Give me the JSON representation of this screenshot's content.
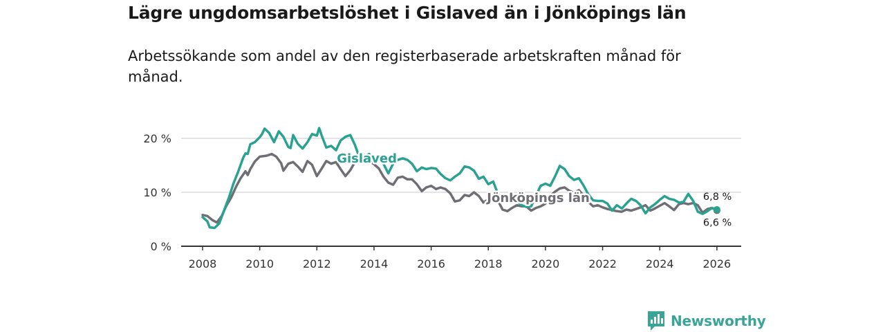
{
  "header": {
    "title": "Lägre ungdomsarbetslöshet i Gislaved än i Jönköpings län",
    "subtitle": "Arbetssökande som andel av den registerbaserade arbetskraften månad för månad."
  },
  "brand": {
    "name": "Newsworthy",
    "color": "#3aa597"
  },
  "chart_data": {
    "type": "line",
    "title": "Lägre ungdomsarbetslöshet i Gislaved än i Jönköpings län",
    "subtitle": "Arbetssökande som andel av den registerbaserade arbetskraften månad för månad.",
    "xlabel": "",
    "ylabel": "",
    "xlim": [
      2007.25,
      2026.85
    ],
    "ylim": [
      0,
      20
    ],
    "grid": true,
    "x_ticks": [
      2008,
      2010,
      2012,
      2014,
      2016,
      2018,
      2020,
      2022,
      2024,
      2026
    ],
    "x_tick_labels": [
      "2008",
      "2010",
      "2012",
      "2014",
      "2016",
      "2018",
      "2020",
      "2022",
      "2024",
      "2026"
    ],
    "y_ticks": [
      0,
      10,
      20
    ],
    "y_tick_labels": [
      "0 %",
      "10 %",
      "20 %"
    ],
    "series": [
      {
        "name": "Jönköpings län",
        "color": "#6e6e74",
        "end_label": "6,6 %",
        "points": [
          [
            2008.0,
            5.8
          ],
          [
            2008.17,
            5.6
          ],
          [
            2008.33,
            4.9
          ],
          [
            2008.5,
            4.4
          ],
          [
            2008.67,
            5.6
          ],
          [
            2008.83,
            7.5
          ],
          [
            2009.0,
            9.0
          ],
          [
            2009.17,
            11.0
          ],
          [
            2009.33,
            12.6
          ],
          [
            2009.5,
            13.9
          ],
          [
            2009.58,
            13.2
          ],
          [
            2009.67,
            14.3
          ],
          [
            2009.83,
            15.7
          ],
          [
            2010.0,
            16.6
          ],
          [
            2010.25,
            16.8
          ],
          [
            2010.42,
            17.1
          ],
          [
            2010.58,
            16.6
          ],
          [
            2010.75,
            15.4
          ],
          [
            2010.83,
            14.0
          ],
          [
            2011.0,
            15.3
          ],
          [
            2011.17,
            15.6
          ],
          [
            2011.33,
            14.8
          ],
          [
            2011.5,
            13.8
          ],
          [
            2011.67,
            15.8
          ],
          [
            2011.83,
            15.1
          ],
          [
            2012.0,
            13.0
          ],
          [
            2012.17,
            14.4
          ],
          [
            2012.33,
            15.8
          ],
          [
            2012.5,
            15.3
          ],
          [
            2012.67,
            15.6
          ],
          [
            2012.83,
            14.3
          ],
          [
            2013.0,
            13.0
          ],
          [
            2013.17,
            14.1
          ],
          [
            2013.33,
            15.6
          ],
          [
            2013.5,
            16.3
          ],
          [
            2013.67,
            16.9
          ],
          [
            2013.83,
            16.2
          ],
          [
            2013.92,
            15.5
          ],
          [
            2014.0,
            15.2
          ],
          [
            2014.17,
            14.4
          ],
          [
            2014.33,
            12.9
          ],
          [
            2014.5,
            11.8
          ],
          [
            2014.67,
            11.4
          ],
          [
            2014.83,
            12.7
          ],
          [
            2015.0,
            12.9
          ],
          [
            2015.17,
            12.4
          ],
          [
            2015.33,
            12.4
          ],
          [
            2015.5,
            11.5
          ],
          [
            2015.67,
            10.2
          ],
          [
            2015.83,
            10.9
          ],
          [
            2016.0,
            11.2
          ],
          [
            2016.17,
            10.6
          ],
          [
            2016.33,
            10.9
          ],
          [
            2016.5,
            10.6
          ],
          [
            2016.67,
            9.8
          ],
          [
            2016.83,
            8.3
          ],
          [
            2017.0,
            8.5
          ],
          [
            2017.17,
            9.5
          ],
          [
            2017.33,
            9.3
          ],
          [
            2017.5,
            10.0
          ],
          [
            2017.67,
            9.3
          ],
          [
            2017.83,
            8.1
          ],
          [
            2018.0,
            8.7
          ],
          [
            2018.17,
            8.6
          ],
          [
            2018.33,
            8.5
          ],
          [
            2018.5,
            6.8
          ],
          [
            2018.67,
            6.5
          ],
          [
            2018.83,
            7.1
          ],
          [
            2019.0,
            7.6
          ],
          [
            2019.17,
            7.4
          ],
          [
            2019.33,
            7.4
          ],
          [
            2019.5,
            6.6
          ],
          [
            2019.67,
            7.1
          ],
          [
            2019.83,
            7.4
          ],
          [
            2020.0,
            7.9
          ],
          [
            2020.17,
            9.3
          ],
          [
            2020.33,
            10.1
          ],
          [
            2020.5,
            10.7
          ],
          [
            2020.67,
            10.9
          ],
          [
            2020.83,
            10.3
          ],
          [
            2021.0,
            9.9
          ],
          [
            2021.17,
            10.4
          ],
          [
            2021.33,
            9.4
          ],
          [
            2021.5,
            8.2
          ],
          [
            2021.67,
            7.4
          ],
          [
            2021.83,
            7.6
          ],
          [
            2022.0,
            7.2
          ],
          [
            2022.17,
            6.9
          ],
          [
            2022.33,
            6.7
          ],
          [
            2022.5,
            6.5
          ],
          [
            2022.67,
            6.4
          ],
          [
            2022.83,
            6.8
          ],
          [
            2023.0,
            6.6
          ],
          [
            2023.17,
            6.9
          ],
          [
            2023.33,
            7.2
          ],
          [
            2023.5,
            7.6
          ],
          [
            2023.67,
            6.6
          ],
          [
            2023.83,
            7.0
          ],
          [
            2024.0,
            7.5
          ],
          [
            2024.17,
            8.0
          ],
          [
            2024.33,
            7.4
          ],
          [
            2024.5,
            6.7
          ],
          [
            2024.67,
            7.8
          ],
          [
            2024.83,
            8.0
          ],
          [
            2025.0,
            7.8
          ],
          [
            2025.17,
            8.0
          ],
          [
            2025.33,
            7.6
          ],
          [
            2025.5,
            6.2
          ],
          [
            2025.67,
            6.9
          ],
          [
            2025.83,
            7.1
          ],
          [
            2026.0,
            6.6
          ]
        ]
      },
      {
        "name": "Gislaved",
        "color": "#2aa191",
        "end_label": "6,8 %",
        "points": [
          [
            2008.0,
            5.4
          ],
          [
            2008.17,
            4.6
          ],
          [
            2008.25,
            3.5
          ],
          [
            2008.42,
            3.4
          ],
          [
            2008.58,
            4.2
          ],
          [
            2008.75,
            6.6
          ],
          [
            2008.92,
            9.0
          ],
          [
            2009.08,
            11.6
          ],
          [
            2009.25,
            13.9
          ],
          [
            2009.42,
            16.4
          ],
          [
            2009.5,
            17.2
          ],
          [
            2009.58,
            17.1
          ],
          [
            2009.67,
            18.9
          ],
          [
            2009.83,
            19.3
          ],
          [
            2010.0,
            20.2
          ],
          [
            2010.08,
            20.8
          ],
          [
            2010.17,
            21.8
          ],
          [
            2010.33,
            21.0
          ],
          [
            2010.5,
            19.3
          ],
          [
            2010.67,
            21.3
          ],
          [
            2010.83,
            20.3
          ],
          [
            2011.0,
            18.4
          ],
          [
            2011.08,
            18.2
          ],
          [
            2011.17,
            20.6
          ],
          [
            2011.33,
            19.0
          ],
          [
            2011.5,
            18.1
          ],
          [
            2011.67,
            19.3
          ],
          [
            2011.83,
            20.8
          ],
          [
            2012.0,
            20.5
          ],
          [
            2012.08,
            21.9
          ],
          [
            2012.17,
            20.5
          ],
          [
            2012.33,
            18.3
          ],
          [
            2012.5,
            18.6
          ],
          [
            2012.67,
            17.8
          ],
          [
            2012.83,
            19.6
          ],
          [
            2013.0,
            20.3
          ],
          [
            2013.17,
            20.6
          ],
          [
            2013.33,
            18.8
          ],
          [
            2013.5,
            16.3
          ],
          [
            2013.67,
            16.7
          ],
          [
            2013.83,
            17.1
          ],
          [
            2014.0,
            16.1
          ],
          [
            2014.17,
            16.1
          ],
          [
            2014.33,
            15.3
          ],
          [
            2014.5,
            13.5
          ],
          [
            2014.67,
            15.3
          ],
          [
            2014.83,
            16.0
          ],
          [
            2015.0,
            16.3
          ],
          [
            2015.17,
            16.0
          ],
          [
            2015.33,
            15.3
          ],
          [
            2015.5,
            13.9
          ],
          [
            2015.67,
            14.6
          ],
          [
            2015.83,
            14.3
          ],
          [
            2016.0,
            14.5
          ],
          [
            2016.17,
            14.4
          ],
          [
            2016.33,
            13.4
          ],
          [
            2016.5,
            12.6
          ],
          [
            2016.67,
            12.2
          ],
          [
            2016.83,
            12.9
          ],
          [
            2017.0,
            13.5
          ],
          [
            2017.17,
            14.8
          ],
          [
            2017.33,
            14.6
          ],
          [
            2017.5,
            14.0
          ],
          [
            2017.67,
            12.5
          ],
          [
            2017.83,
            12.9
          ],
          [
            2018.0,
            11.5
          ],
          [
            2018.17,
            12.0
          ],
          [
            2018.33,
            9.8
          ],
          [
            2018.5,
            8.8
          ],
          [
            2018.67,
            8.3
          ],
          [
            2018.83,
            8.7
          ],
          [
            2019.0,
            8.4
          ],
          [
            2019.17,
            7.6
          ],
          [
            2019.33,
            7.3
          ],
          [
            2019.5,
            7.4
          ],
          [
            2019.67,
            9.4
          ],
          [
            2019.83,
            11.2
          ],
          [
            2020.0,
            11.6
          ],
          [
            2020.17,
            11.2
          ],
          [
            2020.33,
            12.9
          ],
          [
            2020.5,
            14.9
          ],
          [
            2020.67,
            14.3
          ],
          [
            2020.83,
            13.0
          ],
          [
            2021.0,
            12.3
          ],
          [
            2021.17,
            12.6
          ],
          [
            2021.33,
            11.3
          ],
          [
            2021.5,
            9.6
          ],
          [
            2021.67,
            8.5
          ],
          [
            2021.83,
            8.4
          ],
          [
            2022.0,
            8.4
          ],
          [
            2022.17,
            7.9
          ],
          [
            2022.33,
            6.6
          ],
          [
            2022.5,
            7.6
          ],
          [
            2022.67,
            7.0
          ],
          [
            2022.83,
            7.9
          ],
          [
            2023.0,
            8.8
          ],
          [
            2023.17,
            8.4
          ],
          [
            2023.33,
            7.6
          ],
          [
            2023.5,
            6.1
          ],
          [
            2023.67,
            7.2
          ],
          [
            2023.83,
            7.8
          ],
          [
            2024.0,
            8.6
          ],
          [
            2024.17,
            9.3
          ],
          [
            2024.33,
            8.8
          ],
          [
            2024.5,
            8.6
          ],
          [
            2024.67,
            8.1
          ],
          [
            2024.83,
            8.2
          ],
          [
            2025.0,
            9.7
          ],
          [
            2025.17,
            8.4
          ],
          [
            2025.33,
            6.4
          ],
          [
            2025.5,
            6.0
          ],
          [
            2025.67,
            6.5
          ],
          [
            2025.83,
            7.1
          ],
          [
            2026.0,
            6.8
          ]
        ]
      }
    ],
    "annotations": [
      {
        "text": "Gislaved",
        "series": "Gislaved",
        "x": 2013.75,
        "y": 16.3
      },
      {
        "text": "Jönköpings län",
        "series": "Jönköpings län",
        "x": 2019.75,
        "y": 9.0
      }
    ]
  }
}
